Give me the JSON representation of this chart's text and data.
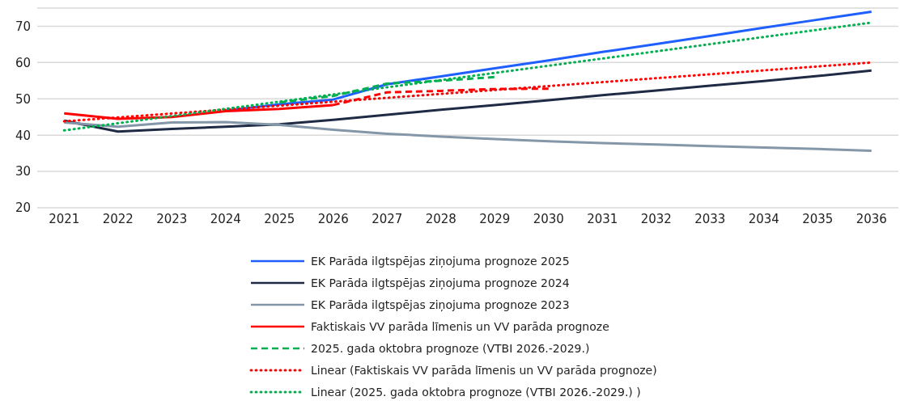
{
  "chart_data": {
    "type": "line",
    "x": [
      2021,
      2022,
      2023,
      2024,
      2025,
      2026,
      2027,
      2028,
      2029,
      2030,
      2031,
      2032,
      2033,
      2034,
      2035,
      2036
    ],
    "xlim": [
      2020.5,
      2036.5
    ],
    "xticks": [
      2021,
      2022,
      2023,
      2024,
      2025,
      2026,
      2027,
      2028,
      2029,
      2030,
      2031,
      2032,
      2033,
      2034,
      2035,
      2036
    ],
    "ylim": [
      20,
      75
    ],
    "yticks": [
      20,
      30,
      40,
      50,
      60,
      70
    ],
    "grid": "y",
    "legend": "bottom",
    "marker": "none",
    "series": [
      {
        "name": "EK Parāda ilgtspējas ziņojuma prognoze 2025",
        "color": "#1f5fff",
        "line_style": "solid",
        "values": [
          null,
          null,
          null,
          46.8,
          48.5,
          49.8,
          54,
          56.2,
          58.4,
          60.6,
          62.9,
          65.1,
          67.3,
          69.6,
          71.8,
          74
        ]
      },
      {
        "name": "EK Parāda ilgtspējas ziņojuma prognoze 2024",
        "color": "#1f2a44",
        "line_style": "solid",
        "values": [
          44,
          41,
          41.7,
          42.3,
          43,
          44.2,
          45.6,
          47,
          48.3,
          49.6,
          51,
          52.3,
          53.6,
          54.9,
          56.3,
          57.8
        ]
      },
      {
        "name": "EK Parāda ilgtspējas ziņojuma prognoze 2023",
        "color": "#8497a8",
        "line_style": "solid",
        "values": [
          43.5,
          42.3,
          43.5,
          43.6,
          42.8,
          41.5,
          40.4,
          39.6,
          38.9,
          38.3,
          37.8,
          37.4,
          37,
          36.6,
          36.2,
          35.7
        ]
      },
      {
        "name": "Faktiskais VV parāda līmenis un VV parāda prognoze",
        "color": "#ff0000",
        "line_style": "solid",
        "values": [
          46,
          44.5,
          45,
          46.6,
          47.2,
          48.3,
          null,
          null,
          null,
          null,
          null,
          null,
          null,
          null,
          null,
          null
        ]
      },
      {
        "color": "#ff0000",
        "line_style": "dashed",
        "values": [
          null,
          null,
          null,
          null,
          null,
          48.3,
          51.8,
          52.2,
          52.7,
          52.8,
          null,
          null,
          null,
          null,
          null,
          null
        ]
      },
      {
        "name": "2025. gada oktobra prognoze (VTBI 2026.-2029.)",
        "color": "#00b050",
        "line_style": "dashed",
        "values": [
          null,
          null,
          null,
          null,
          49,
          50.8,
          54.2,
          55,
          56,
          null,
          null,
          null,
          null,
          null,
          null,
          null
        ]
      },
      {
        "name": "Linear (Faktiskais VV parāda līmenis un VV parāda prognoze)",
        "color": "#ff0000",
        "line_style": "dotted",
        "values": [
          43.8,
          null,
          null,
          null,
          null,
          null,
          null,
          null,
          null,
          null,
          null,
          null,
          null,
          null,
          null,
          60
        ]
      },
      {
        "name": "Linear (2025. gada oktobra prognoze (VTBI 2026.-2029.) )",
        "color": "#00b050",
        "line_style": "dotted",
        "values": [
          41.3,
          null,
          null,
          null,
          null,
          null,
          null,
          null,
          null,
          null,
          null,
          null,
          null,
          null,
          null,
          71
        ]
      }
    ]
  }
}
